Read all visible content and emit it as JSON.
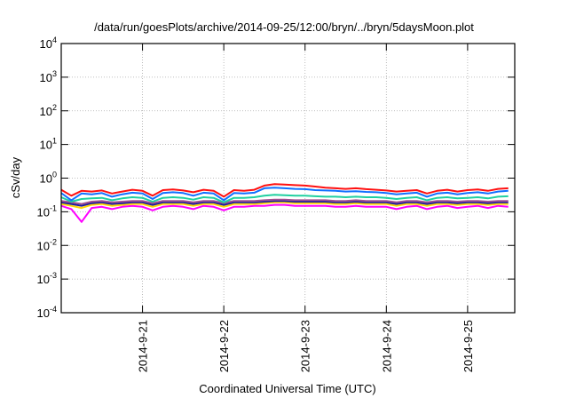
{
  "chart_data": {
    "type": "line",
    "title": "/data/run/goesPlots/archive/2014-09-25/12:00/bryn/../bryn/5daysMoon.plot",
    "xlabel": "Coordinated Universal Time (UTC)",
    "ylabel": "cSv/day",
    "yscale": "log",
    "ylim_exp": [
      -4,
      4
    ],
    "y_ticks": [
      {
        "base": "10",
        "exp": "-4"
      },
      {
        "base": "10",
        "exp": "-3"
      },
      {
        "base": "10",
        "exp": "-2"
      },
      {
        "base": "10",
        "exp": "-1"
      },
      {
        "base": "10",
        "exp": "0"
      },
      {
        "base": "10",
        "exp": "1"
      },
      {
        "base": "10",
        "exp": "2"
      },
      {
        "base": "10",
        "exp": "3"
      },
      {
        "base": "10",
        "exp": "4"
      }
    ],
    "x_unit": "days since 2014-09-20 00:00 UTC",
    "xlim": [
      0,
      5.58
    ],
    "x_ticks": [
      {
        "value": 1,
        "label": "2014-9-21"
      },
      {
        "value": 2,
        "label": "2014-9-22"
      },
      {
        "value": 3,
        "label": "2014-9-23"
      },
      {
        "value": 4,
        "label": "2014-9-24"
      },
      {
        "value": 5,
        "label": "2014-9-25"
      }
    ],
    "grid": true,
    "x_step": 0.125,
    "series": [
      {
        "name": "magenta",
        "color": "#ff00ff",
        "values": [
          0.15,
          0.12,
          0.05,
          0.13,
          0.14,
          0.12,
          0.14,
          0.15,
          0.14,
          0.11,
          0.14,
          0.15,
          0.14,
          0.12,
          0.15,
          0.14,
          0.11,
          0.14,
          0.14,
          0.15,
          0.15,
          0.16,
          0.16,
          0.15,
          0.15,
          0.15,
          0.15,
          0.14,
          0.14,
          0.15,
          0.14,
          0.14,
          0.14,
          0.12,
          0.14,
          0.15,
          0.12,
          0.14,
          0.15,
          0.13,
          0.14,
          0.15,
          0.13,
          0.15,
          0.14
        ]
      },
      {
        "name": "yellow",
        "color": "#ffd700",
        "values": [
          0.17,
          0.15,
          0.13,
          0.16,
          0.17,
          0.15,
          0.16,
          0.17,
          0.17,
          0.14,
          0.17,
          0.17,
          0.17,
          0.15,
          0.17,
          0.17,
          0.14,
          0.17,
          0.17,
          0.17,
          0.18,
          0.19,
          0.19,
          0.18,
          0.18,
          0.18,
          0.18,
          0.17,
          0.17,
          0.18,
          0.17,
          0.17,
          0.17,
          0.15,
          0.17,
          0.17,
          0.15,
          0.17,
          0.17,
          0.16,
          0.17,
          0.17,
          0.16,
          0.17,
          0.17
        ]
      },
      {
        "name": "dark-blue",
        "color": "#1a1aa0",
        "values": [
          0.19,
          0.17,
          0.15,
          0.18,
          0.19,
          0.17,
          0.18,
          0.19,
          0.19,
          0.16,
          0.19,
          0.19,
          0.19,
          0.17,
          0.19,
          0.19,
          0.16,
          0.19,
          0.19,
          0.19,
          0.2,
          0.21,
          0.21,
          0.2,
          0.2,
          0.2,
          0.2,
          0.19,
          0.19,
          0.2,
          0.19,
          0.19,
          0.19,
          0.17,
          0.19,
          0.19,
          0.17,
          0.19,
          0.19,
          0.18,
          0.19,
          0.19,
          0.18,
          0.19,
          0.19
        ]
      },
      {
        "name": "purple",
        "color": "#a05090",
        "values": [
          0.21,
          0.19,
          0.17,
          0.2,
          0.21,
          0.19,
          0.2,
          0.21,
          0.21,
          0.18,
          0.21,
          0.21,
          0.21,
          0.19,
          0.21,
          0.21,
          0.18,
          0.21,
          0.21,
          0.21,
          0.22,
          0.23,
          0.23,
          0.22,
          0.22,
          0.22,
          0.22,
          0.21,
          0.21,
          0.22,
          0.21,
          0.21,
          0.21,
          0.19,
          0.21,
          0.21,
          0.19,
          0.21,
          0.21,
          0.2,
          0.21,
          0.21,
          0.2,
          0.21,
          0.21
        ]
      },
      {
        "name": "teal",
        "color": "#20d0a0",
        "values": [
          0.27,
          0.2,
          0.24,
          0.25,
          0.26,
          0.22,
          0.25,
          0.27,
          0.26,
          0.2,
          0.26,
          0.27,
          0.26,
          0.23,
          0.27,
          0.26,
          0.19,
          0.26,
          0.26,
          0.27,
          0.3,
          0.32,
          0.31,
          0.3,
          0.3,
          0.29,
          0.28,
          0.28,
          0.27,
          0.28,
          0.27,
          0.27,
          0.26,
          0.24,
          0.26,
          0.27,
          0.22,
          0.26,
          0.27,
          0.25,
          0.26,
          0.27,
          0.25,
          0.28,
          0.29
        ]
      },
      {
        "name": "blue",
        "color": "#1070ff",
        "values": [
          0.36,
          0.22,
          0.35,
          0.33,
          0.36,
          0.28,
          0.33,
          0.37,
          0.35,
          0.24,
          0.36,
          0.38,
          0.36,
          0.3,
          0.37,
          0.35,
          0.22,
          0.36,
          0.35,
          0.37,
          0.5,
          0.52,
          0.5,
          0.48,
          0.47,
          0.44,
          0.43,
          0.42,
          0.4,
          0.41,
          0.39,
          0.38,
          0.36,
          0.33,
          0.35,
          0.37,
          0.28,
          0.35,
          0.37,
          0.33,
          0.36,
          0.38,
          0.35,
          0.4,
          0.42
        ]
      },
      {
        "name": "red",
        "color": "#ff1010",
        "values": [
          0.45,
          0.3,
          0.42,
          0.4,
          0.43,
          0.35,
          0.4,
          0.45,
          0.42,
          0.3,
          0.44,
          0.46,
          0.43,
          0.38,
          0.45,
          0.42,
          0.28,
          0.44,
          0.42,
          0.45,
          0.6,
          0.66,
          0.64,
          0.62,
          0.6,
          0.56,
          0.52,
          0.5,
          0.48,
          0.5,
          0.47,
          0.45,
          0.43,
          0.4,
          0.42,
          0.44,
          0.35,
          0.42,
          0.45,
          0.4,
          0.44,
          0.46,
          0.42,
          0.48,
          0.5
        ]
      }
    ]
  }
}
